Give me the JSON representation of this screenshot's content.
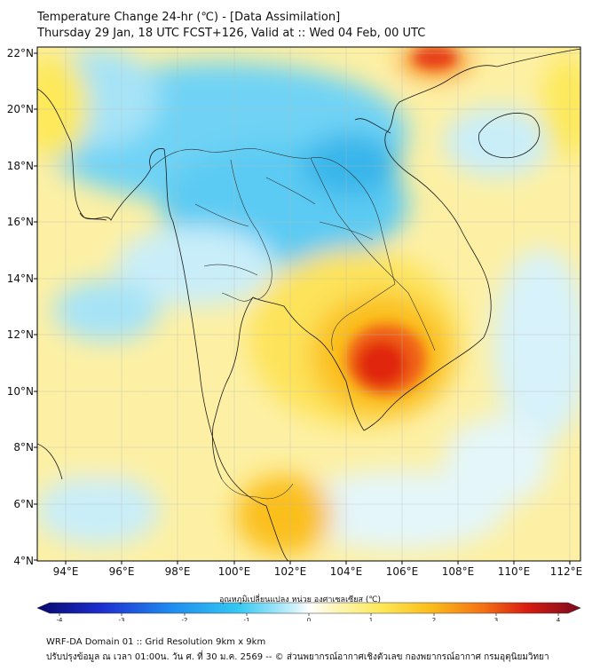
{
  "header": {
    "title_line1": "Temperature Change 24-hr (℃) - [Data Assimilation]",
    "title_line2": "Thursday 29 Jan, 18 UTC FCST+126, Valid at :: Wed 04 Feb, 00 UTC"
  },
  "map": {
    "lon_ticks": [
      "94°E",
      "96°E",
      "98°E",
      "100°E",
      "102°E",
      "104°E",
      "106°E",
      "108°E",
      "110°E",
      "112°E"
    ],
    "lat_ticks": [
      "22°N",
      "20°N",
      "18°N",
      "16°N",
      "14°N",
      "12°N",
      "10°N",
      "8°N",
      "6°N",
      "4°N"
    ]
  },
  "colorbar": {
    "label": "อุณหภูมิเปลี่ยนแปลง หน่วย องศาเซลเซียส (℃)",
    "ticks": [
      "-4",
      "-3",
      "-2",
      "-1",
      "0",
      "1",
      "2",
      "3",
      "4"
    ]
  },
  "footer": {
    "line1": "WRF-DA Domain 01 :: Grid Resolution 9km x 9km",
    "line2": "ปรับปรุงข้อมูล ณ เวลา 01:00น. วัน ศ. ที่ 30 ม.ค. 2569 -- © ส่วนพยากรณ์อากาศเชิงตัวเลข กองพยากรณ์อากาศ กรมอุตุนิยมวิทยา"
  }
}
